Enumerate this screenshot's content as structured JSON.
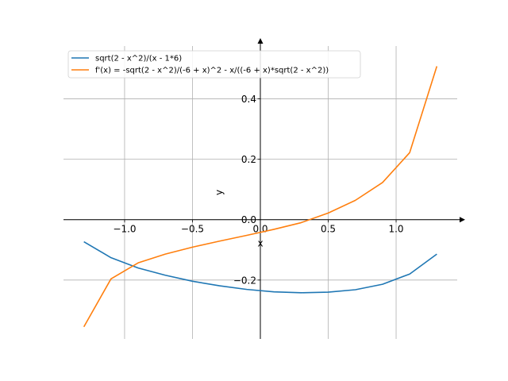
{
  "chart_data": {
    "type": "line",
    "title": "",
    "xlabel": "x",
    "ylabel": "y",
    "xlim": [
      -1.45,
      1.45
    ],
    "ylim": [
      -0.395,
      0.575
    ],
    "grid": true,
    "legend_position": "top-left",
    "x_ticks": [
      {
        "value": -1.0,
        "label": "−1.0"
      },
      {
        "value": -0.5,
        "label": "−0.5"
      },
      {
        "value": 0.0,
        "label": "0.0"
      },
      {
        "value": 0.5,
        "label": "0.5"
      },
      {
        "value": 1.0,
        "label": "1.0"
      }
    ],
    "y_ticks": [
      {
        "value": -0.2,
        "label": "−0.2"
      },
      {
        "value": 0.0,
        "label": "0.0"
      },
      {
        "value": 0.2,
        "label": "0.2"
      },
      {
        "value": 0.4,
        "label": "0.4"
      }
    ],
    "series": [
      {
        "name": "sqrt(2 - x^2)/(x - 1*6)",
        "color": "#1f77b4",
        "x": [
          -1.3,
          -1.1,
          -0.9,
          -0.7,
          -0.5,
          -0.3,
          -0.1,
          0.1,
          0.3,
          0.5,
          0.7,
          0.9,
          1.1,
          1.3
        ],
        "y": [
          -0.073,
          -0.126,
          -0.16,
          -0.184,
          -0.204,
          -0.219,
          -0.231,
          -0.239,
          -0.242,
          -0.24,
          -0.232,
          -0.214,
          -0.18,
          -0.114
        ]
      },
      {
        "name": "f'(x) = -sqrt(2 - x^2)/(-6 + x)^2 - x/((-6 + x)*sqrt(2 - x^2))",
        "color": "#ff7f0e",
        "x": [
          -1.3,
          -1.1,
          -0.9,
          -0.7,
          -0.5,
          -0.3,
          -0.1,
          0.1,
          0.3,
          0.5,
          0.7,
          0.9,
          1.1,
          1.3
        ],
        "y": [
          -0.355,
          -0.196,
          -0.143,
          -0.114,
          -0.091,
          -0.071,
          -0.052,
          -0.032,
          -0.01,
          0.022,
          0.064,
          0.123,
          0.222,
          0.508
        ]
      }
    ]
  }
}
